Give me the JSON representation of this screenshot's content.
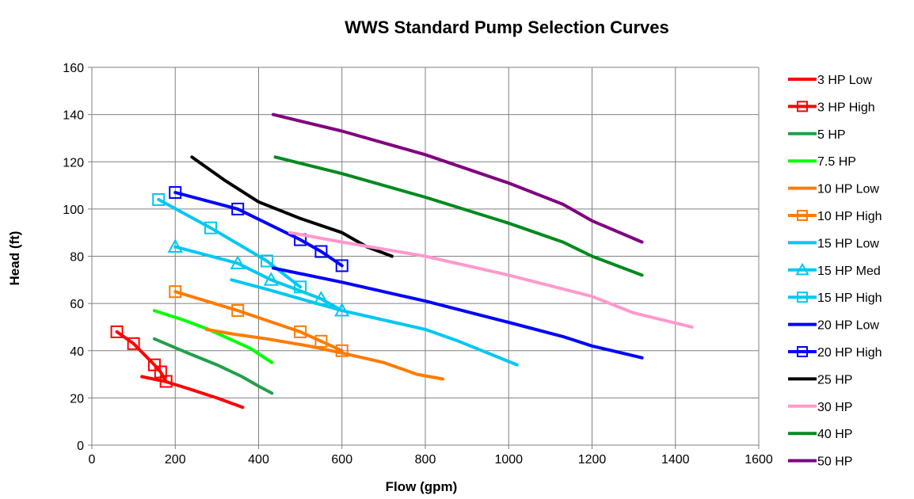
{
  "chart_data": {
    "type": "line",
    "title": "WWS Standard Pump Selection Curves",
    "xlabel": "Flow (gpm)",
    "ylabel": "Head (ft)",
    "xlim": [
      0,
      1600
    ],
    "ylim": [
      0,
      160
    ],
    "xticks": [
      0,
      200,
      400,
      600,
      800,
      1000,
      1200,
      1400,
      1600
    ],
    "yticks": [
      0,
      20,
      40,
      60,
      80,
      100,
      120,
      140,
      160
    ],
    "grid": true,
    "legend_position": "right",
    "series": [
      {
        "name": "3 HP Low",
        "color": "#ff0000",
        "marker": "none",
        "points": [
          [
            120,
            29
          ],
          [
            175,
            27
          ],
          [
            230,
            24
          ],
          [
            300,
            20
          ],
          [
            362,
            16
          ]
        ]
      },
      {
        "name": "3 HP High",
        "color": "#ff0000",
        "marker": "square",
        "points": [
          [
            60,
            48
          ],
          [
            100,
            43
          ],
          [
            150,
            34
          ],
          [
            165,
            31
          ],
          [
            178,
            27
          ]
        ]
      },
      {
        "name": "5 HP",
        "color": "#22a04a",
        "marker": "none",
        "points": [
          [
            150,
            45
          ],
          [
            230,
            39
          ],
          [
            300,
            34
          ],
          [
            360,
            29
          ],
          [
            400,
            25
          ],
          [
            432,
            22
          ]
        ]
      },
      {
        "name": "7.5 HP",
        "color": "#00ff00",
        "marker": "none",
        "points": [
          [
            150,
            57
          ],
          [
            220,
            53
          ],
          [
            280,
            49
          ],
          [
            330,
            45
          ],
          [
            380,
            41
          ],
          [
            432,
            35
          ]
        ]
      },
      {
        "name": "10 HP Low",
        "color": "#ff7b00",
        "marker": "none",
        "points": [
          [
            275,
            49
          ],
          [
            340,
            47
          ],
          [
            420,
            45
          ],
          [
            520,
            42
          ],
          [
            600,
            39
          ],
          [
            700,
            35
          ],
          [
            780,
            30
          ],
          [
            842,
            28
          ]
        ]
      },
      {
        "name": "10 HP High",
        "color": "#ff7b00",
        "marker": "square",
        "points": [
          [
            200,
            65
          ],
          [
            350,
            57
          ],
          [
            500,
            48
          ],
          [
            550,
            44
          ],
          [
            600,
            40
          ]
        ]
      },
      {
        "name": "15 HP Low",
        "color": "#00c8f0",
        "marker": "none",
        "points": [
          [
            335,
            70
          ],
          [
            420,
            66
          ],
          [
            500,
            62
          ],
          [
            600,
            57
          ],
          [
            700,
            53
          ],
          [
            800,
            49
          ],
          [
            880,
            44
          ],
          [
            950,
            39
          ],
          [
            1020,
            34
          ]
        ]
      },
      {
        "name": "15 HP Med",
        "color": "#00c8f0",
        "marker": "triangle",
        "points": [
          [
            200,
            84
          ],
          [
            350,
            77
          ],
          [
            430,
            70
          ],
          [
            550,
            62
          ],
          [
            600,
            57
          ]
        ]
      },
      {
        "name": "15 HP High",
        "color": "#00c8f0",
        "marker": "square",
        "points": [
          [
            160,
            104
          ],
          [
            285,
            92
          ],
          [
            420,
            78
          ],
          [
            500,
            67
          ]
        ]
      },
      {
        "name": "20 HP Low",
        "color": "#0000ff",
        "marker": "none",
        "points": [
          [
            435,
            75
          ],
          [
            600,
            69
          ],
          [
            800,
            61
          ],
          [
            1000,
            52
          ],
          [
            1130,
            46
          ],
          [
            1200,
            42
          ],
          [
            1320,
            37
          ]
        ]
      },
      {
        "name": "20 HP High",
        "color": "#0000ff",
        "marker": "square",
        "points": [
          [
            200,
            107
          ],
          [
            350,
            100
          ],
          [
            500,
            87
          ],
          [
            550,
            82
          ],
          [
            600,
            76
          ]
        ]
      },
      {
        "name": "25 HP",
        "color": "#000000",
        "marker": "none",
        "points": [
          [
            240,
            122
          ],
          [
            320,
            112
          ],
          [
            400,
            103
          ],
          [
            500,
            96
          ],
          [
            600,
            90
          ],
          [
            660,
            84
          ],
          [
            720,
            80
          ]
        ]
      },
      {
        "name": "30 HP",
        "color": "#ff99cc",
        "marker": "none",
        "points": [
          [
            475,
            90
          ],
          [
            600,
            86
          ],
          [
            800,
            80
          ],
          [
            1000,
            72
          ],
          [
            1200,
            63
          ],
          [
            1300,
            56
          ],
          [
            1440,
            50
          ]
        ]
      },
      {
        "name": "40 HP",
        "color": "#008a1e",
        "marker": "none",
        "points": [
          [
            440,
            122
          ],
          [
            600,
            115
          ],
          [
            800,
            105
          ],
          [
            1000,
            94
          ],
          [
            1130,
            86
          ],
          [
            1200,
            80
          ],
          [
            1320,
            72
          ]
        ]
      },
      {
        "name": "50 HP",
        "color": "#800080",
        "marker": "none",
        "points": [
          [
            435,
            140
          ],
          [
            600,
            133
          ],
          [
            800,
            123
          ],
          [
            1000,
            111
          ],
          [
            1130,
            102
          ],
          [
            1200,
            95
          ],
          [
            1320,
            86
          ]
        ]
      }
    ]
  }
}
